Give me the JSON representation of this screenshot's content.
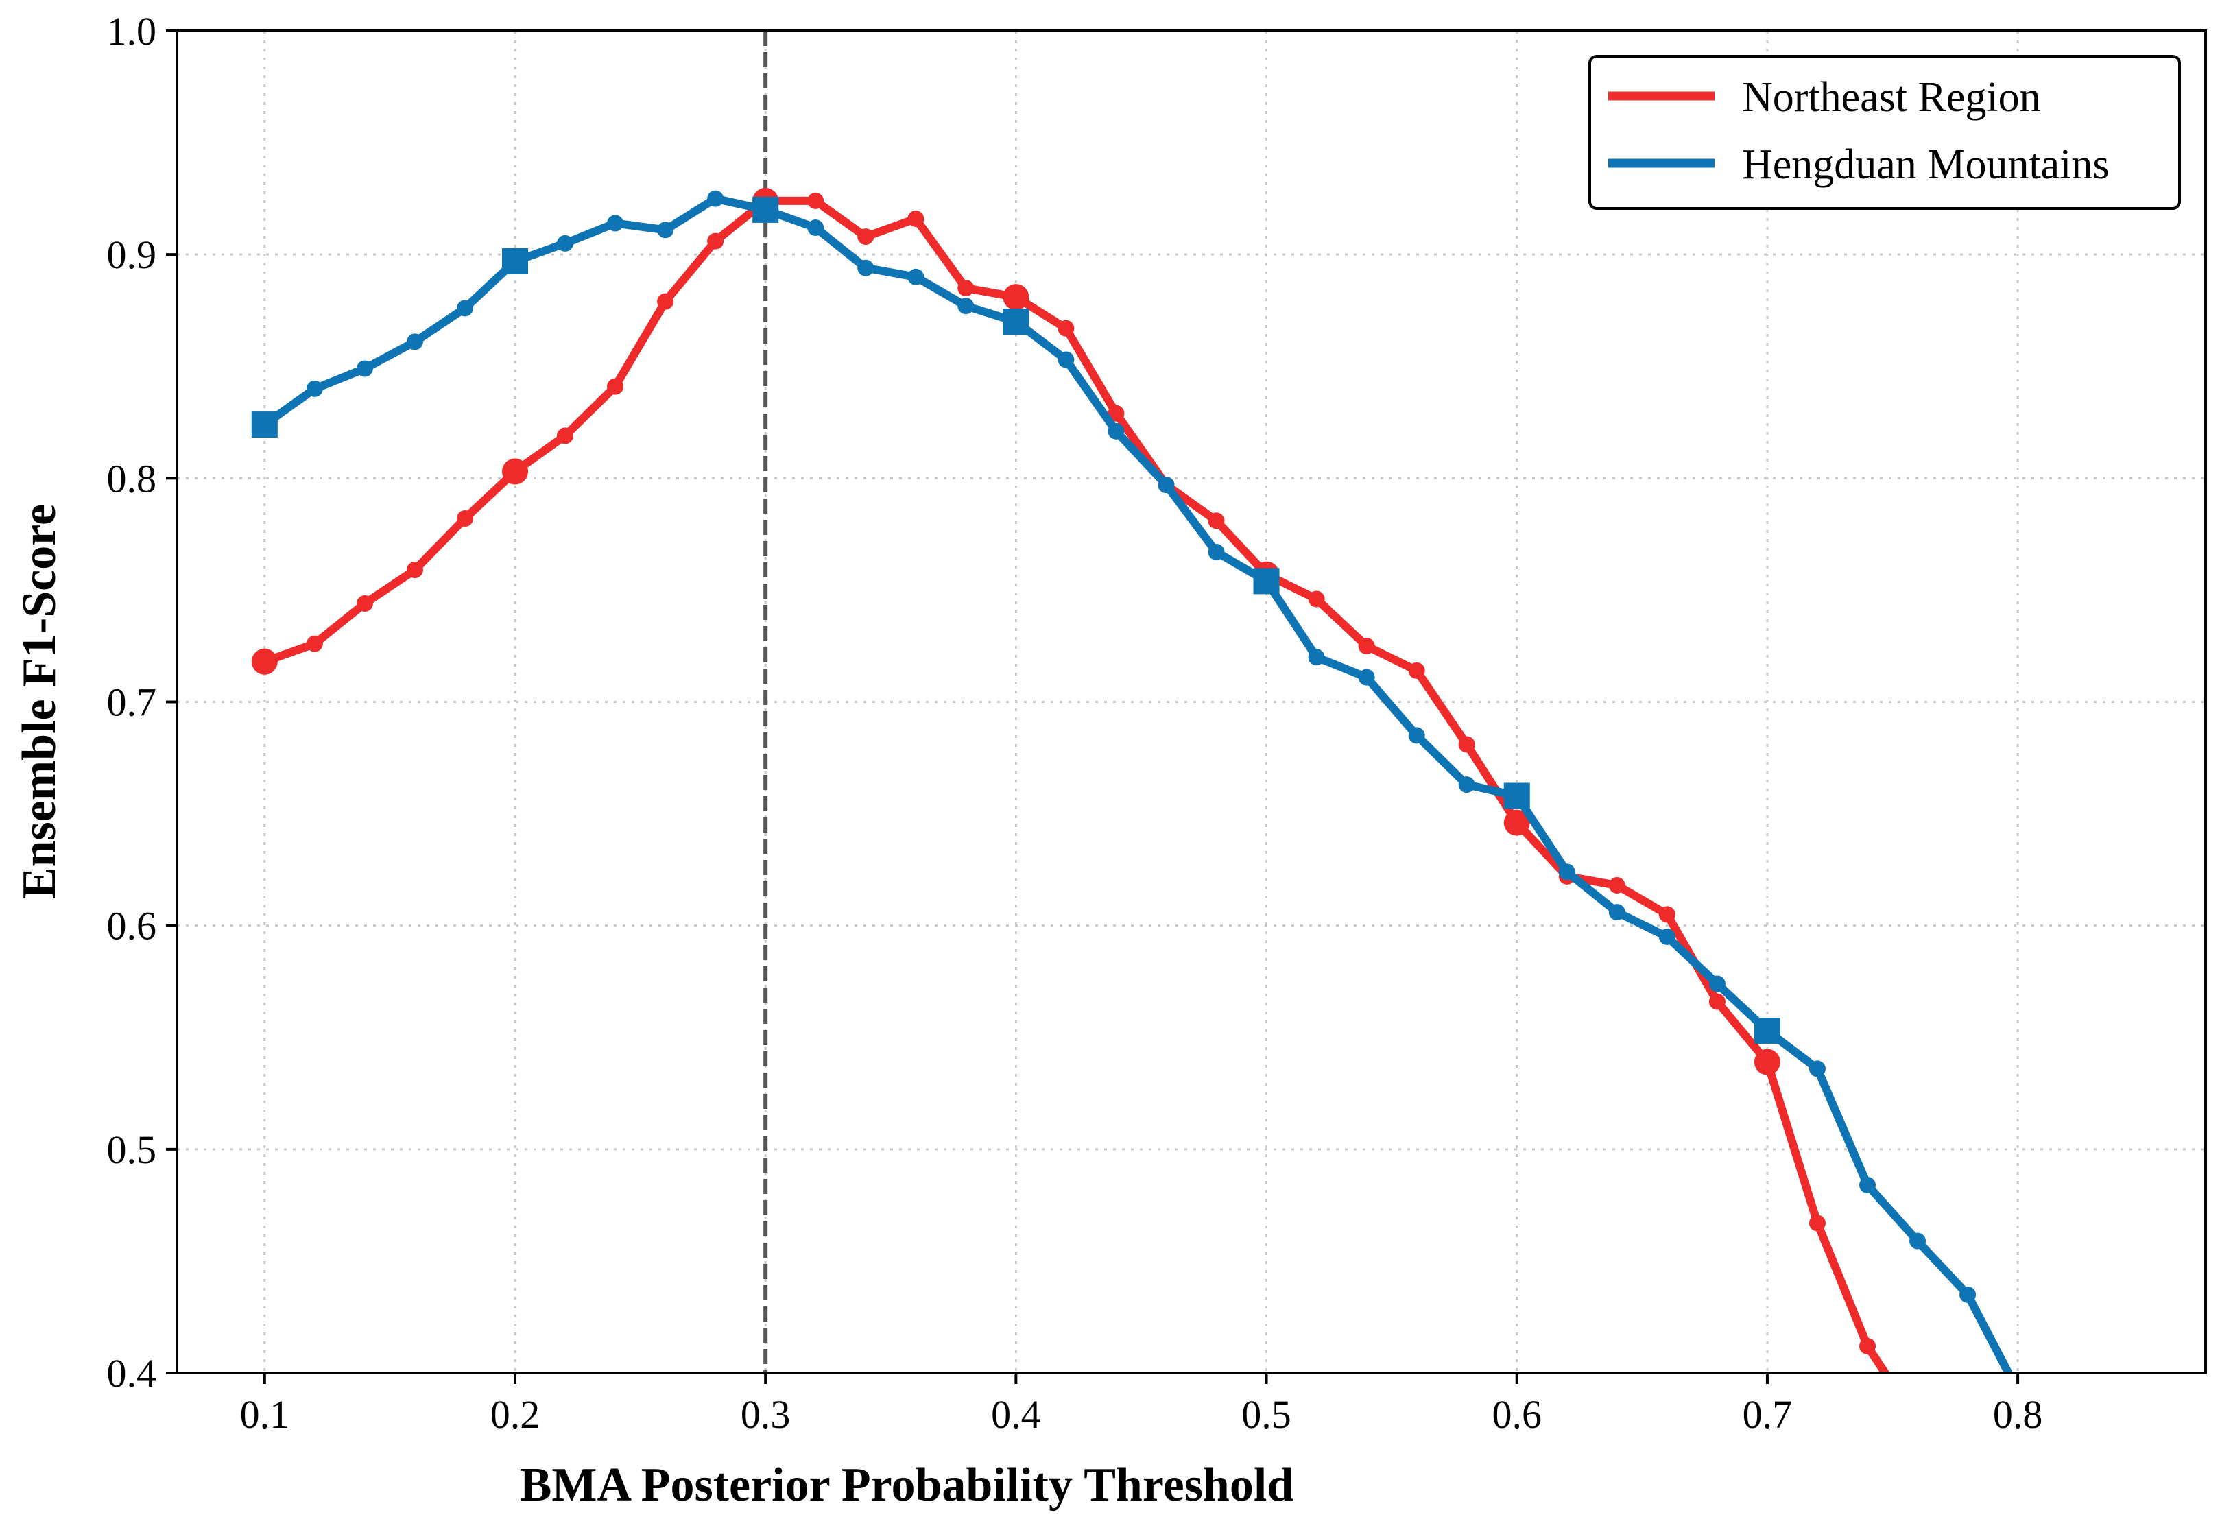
{
  "chart_data": {
    "type": "line",
    "title": "",
    "xlabel": "BMA Posterior Probability Threshold",
    "ylabel": "Ensemble F1-Score",
    "xlim": [
      0.065,
      0.875
    ],
    "ylim": [
      0.4,
      1.0
    ],
    "xticks": [
      "0.1",
      "0.2",
      "0.3",
      "0.4",
      "0.5",
      "0.6",
      "0.7",
      "0.8"
    ],
    "yticks": [
      "0.4",
      "0.5",
      "0.6",
      "0.7",
      "0.8",
      "0.9",
      "1.0"
    ],
    "grid": true,
    "legend_position": "top-right",
    "reference_line": {
      "x": 0.3,
      "style": "dashed",
      "color": "#555555"
    },
    "series": [
      {
        "name": "Northeast Region",
        "color": "#ee2a2a",
        "marker": "circle",
        "x": [
          0.1,
          0.12,
          0.14,
          0.16,
          0.18,
          0.2,
          0.22,
          0.24,
          0.26,
          0.28,
          0.3,
          0.32,
          0.34,
          0.36,
          0.38,
          0.4,
          0.42,
          0.44,
          0.46,
          0.48,
          0.5,
          0.52,
          0.54,
          0.56,
          0.58,
          0.6,
          0.62,
          0.64,
          0.66,
          0.68,
          0.7,
          0.72,
          0.74,
          0.76
        ],
        "values": [
          0.718,
          0.726,
          0.744,
          0.759,
          0.782,
          0.803,
          0.819,
          0.841,
          0.879,
          0.906,
          0.924,
          0.924,
          0.908,
          0.916,
          0.885,
          0.881,
          0.867,
          0.829,
          0.797,
          0.781,
          0.757,
          0.746,
          0.725,
          0.714,
          0.681,
          0.646,
          0.622,
          0.618,
          0.605,
          0.566,
          0.539,
          0.467,
          0.412,
          0.378
        ],
        "highlight_x": [
          0.1,
          0.2,
          0.3,
          0.4,
          0.5,
          0.6,
          0.7
        ]
      },
      {
        "name": "Hengduan Mountains",
        "color": "#0f74b4",
        "marker": "square",
        "x": [
          0.1,
          0.12,
          0.14,
          0.16,
          0.18,
          0.2,
          0.22,
          0.24,
          0.26,
          0.28,
          0.3,
          0.32,
          0.34,
          0.36,
          0.38,
          0.4,
          0.42,
          0.44,
          0.46,
          0.48,
          0.5,
          0.52,
          0.54,
          0.56,
          0.58,
          0.6,
          0.62,
          0.64,
          0.66,
          0.68,
          0.7,
          0.72,
          0.74,
          0.76,
          0.78,
          0.8
        ],
        "values": [
          0.824,
          0.84,
          0.849,
          0.861,
          0.876,
          0.897,
          0.905,
          0.914,
          0.911,
          0.925,
          0.92,
          0.912,
          0.894,
          0.89,
          0.877,
          0.87,
          0.853,
          0.821,
          0.797,
          0.767,
          0.754,
          0.72,
          0.711,
          0.685,
          0.663,
          0.658,
          0.624,
          0.606,
          0.595,
          0.574,
          0.553,
          0.536,
          0.484,
          0.459,
          0.435,
          0.392
        ],
        "highlight_x": [
          0.1,
          0.2,
          0.3,
          0.4,
          0.5,
          0.6,
          0.7
        ]
      }
    ]
  }
}
